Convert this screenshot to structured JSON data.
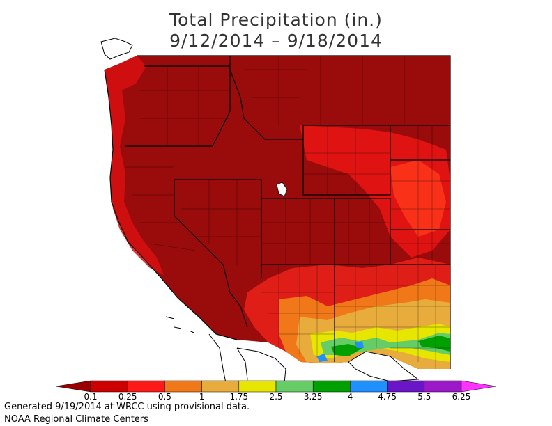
{
  "title_line1": "Total Precipitation (in.)",
  "title_line2": "9/12/2014 – 9/18/2014",
  "legend": {
    "bins": [
      {
        "color": "#9b0000"
      },
      {
        "color": "#cc0000"
      },
      {
        "color": "#ff1a1a"
      },
      {
        "color": "#f07818"
      },
      {
        "color": "#e8ac3c"
      },
      {
        "color": "#e6e600"
      },
      {
        "color": "#66cc66"
      },
      {
        "color": "#00a000"
      },
      {
        "color": "#1e90ff"
      },
      {
        "color": "#6a16c8"
      },
      {
        "color": "#9b19c8"
      },
      {
        "color": "#ff33ff"
      }
    ],
    "labels": [
      "0.1",
      "0.25",
      "0.5",
      "1",
      "1.75",
      "2.5",
      "3.25",
      "4",
      "4.75",
      "5.5",
      "6.25"
    ]
  },
  "footer_line1": "Generated 9/19/2014 at WRCC using provisional data.",
  "footer_line2": "NOAA Regional Climate Centers",
  "map": {
    "base_color": "#9a0c0c",
    "border_color": "#000000",
    "water_color": "#ffffff"
  }
}
